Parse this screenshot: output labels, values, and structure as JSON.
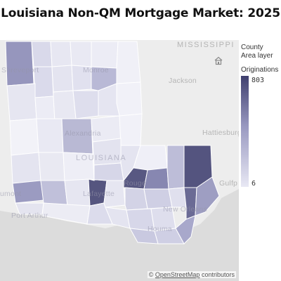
{
  "title": "Louisiana Non-QM Mortgage Market: 2025",
  "legend": {
    "layer_title": "County",
    "layer_subtitle": "Area layer",
    "field": "Originations",
    "max": "803",
    "min": "6",
    "color_high": "#3f3f6e",
    "color_low": "#e8e8f4"
  },
  "basemap_labels": {
    "mississippi": "MISSISSIPPI",
    "jackson": "Jackson",
    "hattiesburg": "Hattiesburg",
    "gulfport": "Gulfp",
    "shreveport": "Shreveport",
    "monroe": "Monroe",
    "alexandria": "Alexandria",
    "louisiana": "LOUISIANA",
    "baton_rouge": "Rouge",
    "lafayette": "Lafayette",
    "beaumont": "umont",
    "port_arthur": "Port Arthur",
    "new_orleans": "New Orleans",
    "houma": "Houma"
  },
  "attribution": {
    "prefix": "©",
    "link": "OpenStreetMap",
    "suffix": "contributors"
  },
  "icons": {
    "home": "home-icon"
  }
}
